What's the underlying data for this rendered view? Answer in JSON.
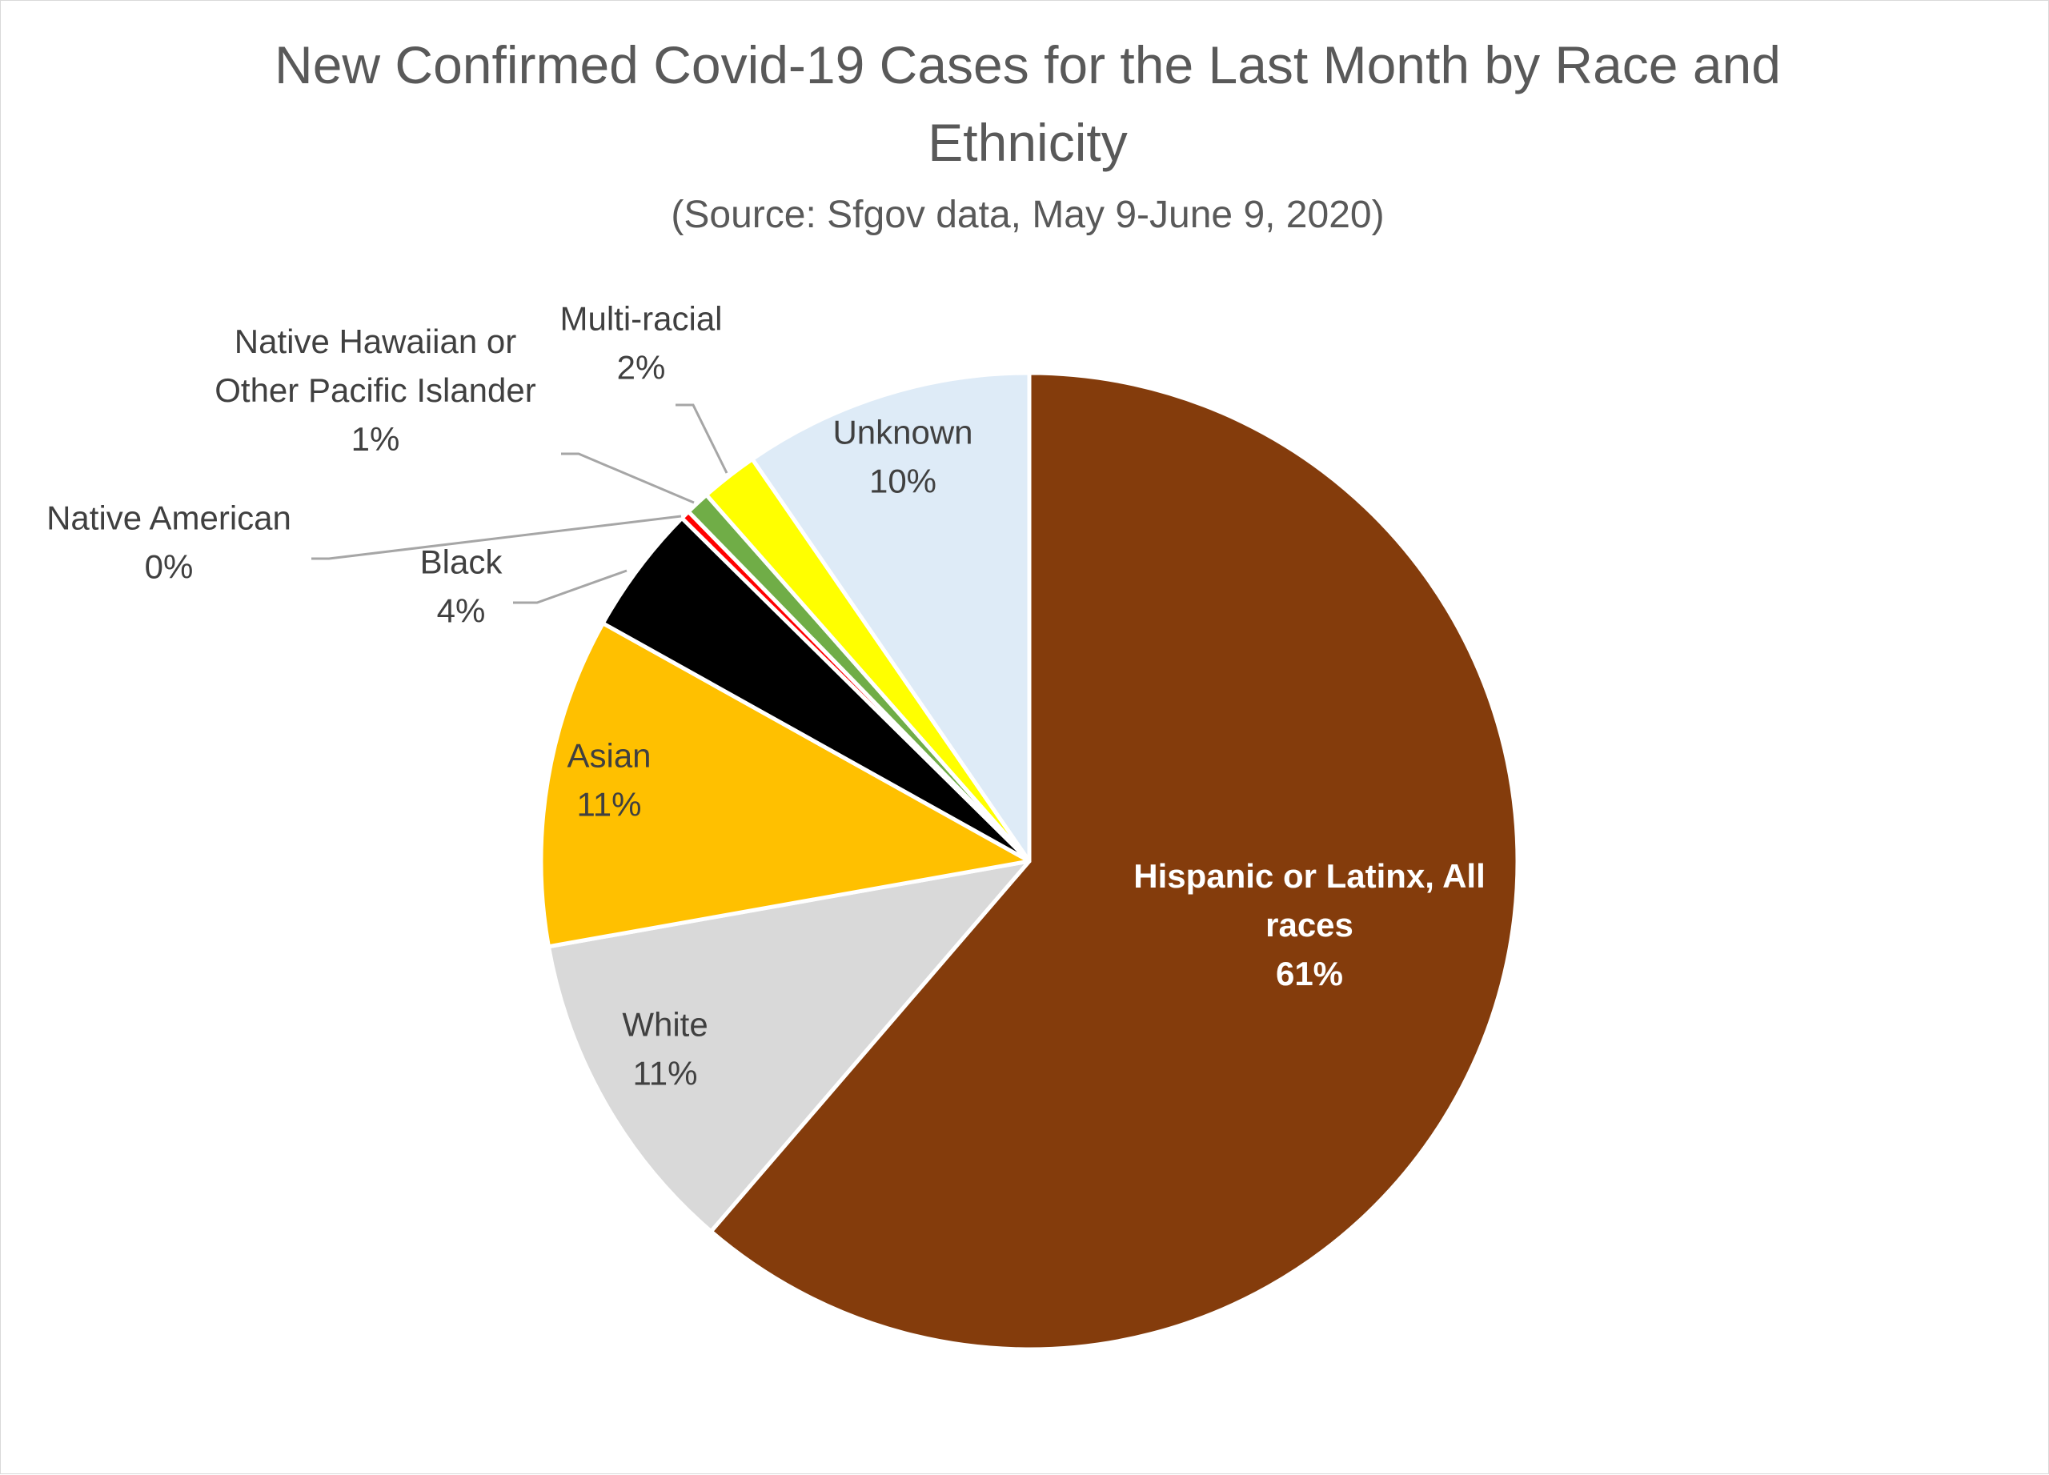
{
  "chart_data": {
    "type": "pie",
    "title": "New Confirmed Covid-19 Cases for the Last Month by Race and Ethnicity",
    "title_lines": [
      "New Confirmed Covid-19 Cases for the Last Month by Race and",
      "Ethnicity"
    ],
    "subtitle": "(Source: Sfgov data, May 9-June 9, 2020)",
    "start_angle_deg": 0,
    "direction": "clockwise",
    "slices": [
      {
        "name": "Hispanic or Latinx, All races",
        "label_lines": [
          "Hispanic or Latinx, All",
          "races"
        ],
        "value": 61.3,
        "percent_label": "61%",
        "color": "#843C0C",
        "label_color": "#ffffff",
        "bold": true
      },
      {
        "name": "White",
        "label_lines": [
          "White"
        ],
        "value": 10.9,
        "percent_label": "11%",
        "color": "#D9D9D9",
        "label_color": "#404040"
      },
      {
        "name": "Asian",
        "label_lines": [
          "Asian"
        ],
        "value": 10.9,
        "percent_label": "11%",
        "color": "#FFC000",
        "label_color": "#404040"
      },
      {
        "name": "Black",
        "label_lines": [
          "Black"
        ],
        "value": 4.3,
        "percent_label": "4%",
        "color": "#000000",
        "label_color": "#404040"
      },
      {
        "name": "Native American",
        "label_lines": [
          "Native American"
        ],
        "value": 0.3,
        "percent_label": "0%",
        "color": "#FF0000",
        "label_color": "#404040"
      },
      {
        "name": "Native Hawaiian or Other Pacific Islander",
        "label_lines": [
          "Native Hawaiian or",
          "Other Pacific Islander"
        ],
        "value": 0.8,
        "percent_label": "1%",
        "color": "#70AD47",
        "label_color": "#404040"
      },
      {
        "name": "Multi-racial",
        "label_lines": [
          "Multi-racial"
        ],
        "value": 1.9,
        "percent_label": "2%",
        "color": "#FFFF00",
        "label_color": "#404040"
      },
      {
        "name": "Unknown",
        "label_lines": [
          "Unknown"
        ],
        "value": 9.6,
        "percent_label": "10%",
        "color": "#DEEBF7",
        "label_color": "#404040"
      }
    ],
    "leader_line_color": "#a6a6a6",
    "legend": "none"
  }
}
